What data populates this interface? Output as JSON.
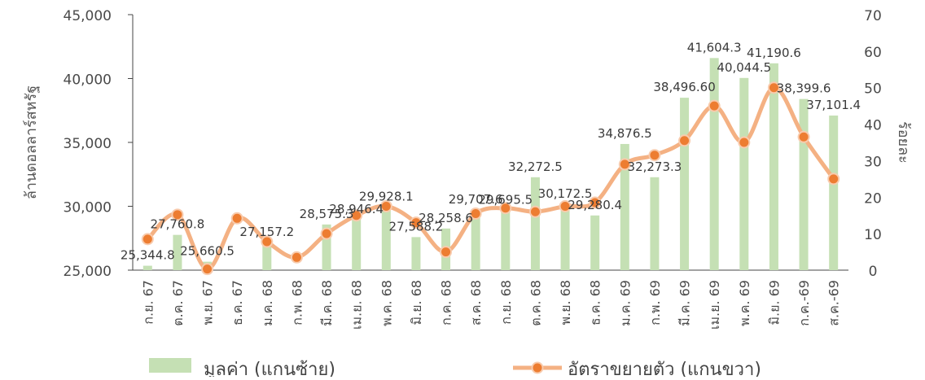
{
  "chart_data": {
    "type": "bar+line",
    "categories": [
      "ก.ย. 67",
      "ต.ค. 67",
      "พ.ย. 67",
      "ธ.ค. 67",
      "ม.ค. 68",
      "ก.พ. 68",
      "มี.ค. 68",
      "เม.ย. 68",
      "พ.ค. 68",
      "มิ.ย. 68",
      "ก.ค. 68",
      "ส.ค. 68",
      "ก.ย. 68",
      "ต.ค. 68",
      "พ.ย. 68",
      "ธ.ค. 68",
      "ม.ค. 69",
      "ก.พ. 69",
      "มี.ค. 69",
      "เม.ย. 69",
      "พ.ค. 69",
      "มิ.ย. 69",
      "ก.ค.-69",
      "ส.ค.-69"
    ],
    "series": [
      {
        "name": "มูลค่า (แกนซ้าย)",
        "kind": "bar",
        "axis": "left",
        "color": "#c5e0b4",
        "values": [
          25344.8,
          27760.8,
          25660.5,
          24900,
          27157.2,
          24900,
          28575.3,
          28946.4,
          29928.1,
          27588.2,
          28258.6,
          29707.6,
          29695.5,
          32272.5,
          30172.5,
          29280.4,
          34876.5,
          32273.3,
          38496.6,
          41604.3,
          40044.5,
          41190.6,
          38399.6,
          37101.4
        ],
        "labels": [
          "25,344.8",
          "27,760.8",
          "25,660.5",
          "",
          "27,157.2",
          "",
          "28,575.3",
          "28,946.4",
          "29,928.1",
          "27,588.2",
          "28,258.6",
          "29,707.6",
          "29,695.5",
          "32,272.5",
          "30,172.5",
          "29,280.4",
          "34,876.5",
          "32,273.3",
          "38,496.60",
          "41,604.3",
          "40,044.5",
          "41,190.6",
          "38,399.6",
          "37,101.4"
        ]
      },
      {
        "name": "อัตราขยายตัว (แกนขวา)",
        "kind": "line",
        "axis": "right",
        "color": "#f4b183",
        "marker_color": "#ed7d31",
        "values": [
          8.5,
          15.2,
          0.3,
          14.2,
          7.8,
          3.5,
          10.0,
          15.0,
          17.5,
          13.0,
          5.0,
          15.5,
          17.0,
          16.0,
          17.5,
          18.5,
          29.0,
          31.5,
          35.5,
          45.0,
          35.0,
          50.0,
          36.5,
          25.0
        ]
      }
    ],
    "y_left": {
      "label": "ล้านดอลลาร์สหรัฐ",
      "min": 25000,
      "max": 45000,
      "ticks": [
        "25,000",
        "30,000",
        "35,000",
        "40,000",
        "45,000"
      ]
    },
    "y_right": {
      "label": "ร้อยละ",
      "min": 0,
      "max": 70,
      "ticks": [
        "0",
        "10",
        "20",
        "30",
        "40",
        "50",
        "60",
        "70"
      ]
    },
    "legend": {
      "placement": "bottom",
      "items": [
        "มูลค่า (แกนซ้าย)",
        "อัตราขยายตัว (แกนขวา)"
      ]
    },
    "grid": false
  }
}
